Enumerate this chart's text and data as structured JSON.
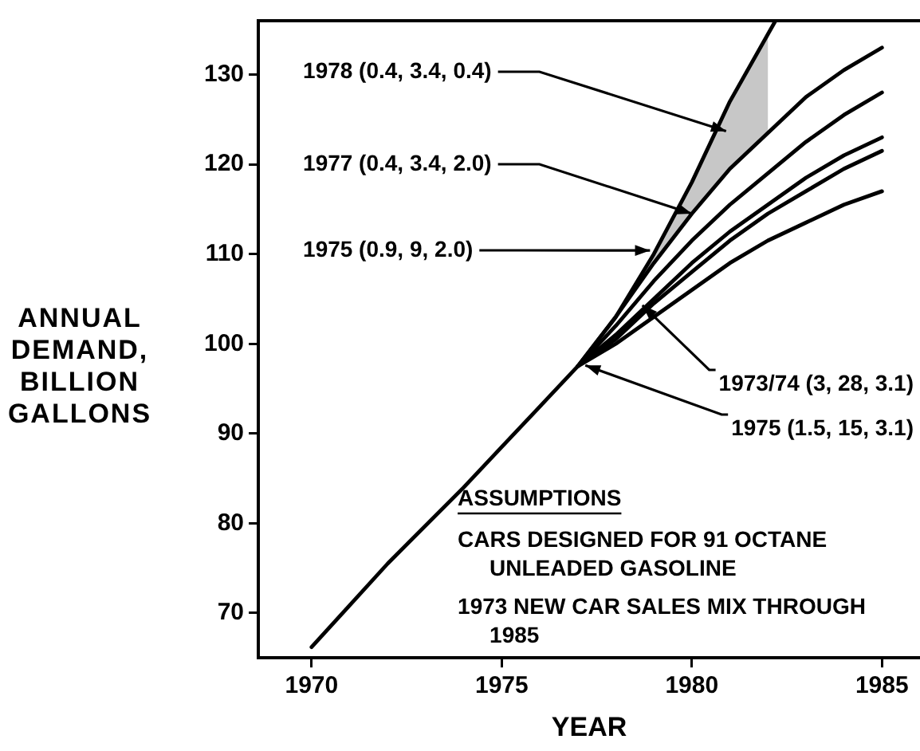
{
  "chart_data": {
    "type": "line",
    "xlabel": "YEAR",
    "ylabel": "ANNUAL DEMAND, BILLION GALLONS",
    "xlim": [
      1968.6,
      1986
    ],
    "xticks": [
      1970,
      1975,
      1980,
      1985
    ],
    "ylim": [
      65,
      136
    ],
    "yticks": [
      70,
      80,
      90,
      100,
      110,
      120,
      130
    ],
    "grid": false,
    "legend": false,
    "marker": "none",
    "line_style": "solid",
    "series": [
      {
        "color": "#000000",
        "x": [
          1970,
          1972,
          1974,
          1975,
          1976,
          1977,
          1978,
          1979,
          1980,
          1981,
          1982.2
        ],
        "values": [
          66.2,
          75.5,
          84,
          88.5,
          93,
          97.5,
          103,
          110,
          118,
          127,
          136
        ]
      },
      {
        "color": "#000000",
        "x": [
          1977,
          1978,
          1979,
          1980,
          1981,
          1982,
          1983,
          1984,
          1985
        ],
        "values": [
          97.5,
          103,
          109,
          114.5,
          119.5,
          123.5,
          127.5,
          130.5,
          133
        ],
        "lower": [
          97.5,
          103,
          109,
          114.5,
          119.5,
          123.5,
          null,
          null,
          null
        ],
        "upper": [
          97.5,
          103,
          110,
          118,
          127,
          134.5,
          null,
          null,
          null
        ]
      },
      {
        "color": "#000000",
        "x": [
          1977,
          1978,
          1979,
          1980,
          1981,
          1982,
          1983,
          1984,
          1985
        ],
        "values": [
          97.5,
          102,
          107,
          111.5,
          115.5,
          119,
          122.5,
          125.5,
          128
        ]
      },
      {
        "color": "#000000",
        "x": [
          1977,
          1978,
          1979,
          1980,
          1981,
          1982,
          1983,
          1984,
          1985
        ],
        "values": [
          97.5,
          101,
          105,
          109,
          112.5,
          115.5,
          118.5,
          121,
          123
        ]
      },
      {
        "color": "#000000",
        "x": [
          1977,
          1978,
          1979,
          1980,
          1981,
          1982,
          1983,
          1984,
          1985
        ],
        "values": [
          97.5,
          100.5,
          104.5,
          108,
          111.5,
          114.5,
          117,
          119.5,
          121.5
        ]
      },
      {
        "color": "#000000",
        "x": [
          1977,
          1978,
          1979,
          1980,
          1981,
          1982,
          1983,
          1984,
          1985
        ],
        "values": [
          97.5,
          100,
          103,
          106,
          109,
          111.5,
          113.5,
          115.5,
          117
        ]
      }
    ],
    "annotations": [
      {
        "text": "1978 (0.4, 3.4, 0.4)",
        "x": 1980.9,
        "y": 123.7
      },
      {
        "text": "1977 (0.4, 3.4, 2.0)",
        "x": 1980,
        "y": 114.5
      },
      {
        "text": "1975 (0.9, 9, 2.0)",
        "x": 1978.9,
        "y": 110.4
      },
      {
        "text": "1973/74 (3, 28, 3.1)",
        "x": 1978.7,
        "y": 104.3
      },
      {
        "text": "1975 (1.5, 15, 3.1)",
        "x": 1977.2,
        "y": 97.6
      },
      "ASSUMPTIONS",
      "CARS DESIGNED FOR 91 OCTANE UNLEADED GASOLINE",
      "1973 NEW CAR SALES MIX THROUGH 1985"
    ]
  }
}
